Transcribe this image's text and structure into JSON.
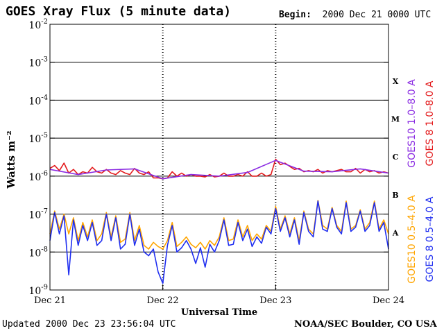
{
  "header": {
    "title": "GOES Xray Flux (5 minute data)",
    "begin_label": "Begin:",
    "begin_value": "2000 Dec 21 0000 UTC"
  },
  "footer": {
    "updated_label": "Updated",
    "updated_value": "2000 Dec 23 23:56:04 UTC",
    "credit": "NOAA/SEC Boulder, CO USA"
  },
  "chart_data": {
    "type": "line",
    "title": "GOES Xray Flux (5 minute data)",
    "xlabel": "Universal Time",
    "ylabel": "Watts m⁻²",
    "yscale": "log",
    "ylim": [
      1e-09,
      0.01
    ],
    "xlim": [
      0,
      72
    ],
    "x_unit": "hours since 2000 Dec 21 0000 UTC",
    "x_ticks": [
      {
        "value": 0,
        "label": "Dec 21"
      },
      {
        "value": 24,
        "label": "Dec 22"
      },
      {
        "value": 48,
        "label": "Dec 23"
      },
      {
        "value": 72,
        "label": "Dec 24"
      }
    ],
    "y_ticks": [
      {
        "value": 1e-09,
        "base": "10",
        "exp": "-9"
      },
      {
        "value": 1e-08,
        "base": "10",
        "exp": "-8"
      },
      {
        "value": 1e-07,
        "base": "10",
        "exp": "-7"
      },
      {
        "value": 1e-06,
        "base": "10",
        "exp": "-6"
      },
      {
        "value": 1e-05,
        "base": "10",
        "exp": "-5"
      },
      {
        "value": 0.0001,
        "base": "10",
        "exp": "-4"
      },
      {
        "value": 0.001,
        "base": "10",
        "exp": "-3"
      },
      {
        "value": 0.01,
        "base": "10",
        "exp": "-2"
      }
    ],
    "flare_classes": [
      {
        "label": "A",
        "value": 3.2e-08
      },
      {
        "label": "B",
        "value": 3.2e-07
      },
      {
        "label": "C",
        "value": 3.2e-06
      },
      {
        "label": "M",
        "value": 3.2e-05
      },
      {
        "label": "X",
        "value": 0.00032
      }
    ],
    "grid": {
      "horizontal_decades": [
        1e-08,
        1e-07,
        1e-06,
        1e-05,
        0.0001,
        0.001
      ],
      "vertical_dotted_days": [
        24,
        48
      ]
    },
    "legend": [
      {
        "label": "GOES10 1.0–8.0 A",
        "color": "#8a2be2"
      },
      {
        "label": "GOES 8 1.0–8.0 A",
        "color": "#e31a1c"
      },
      {
        "label": "GOES10 0.5–4.0 A",
        "color": "#ffa500"
      },
      {
        "label": "GOES 8 0.5–4.0 A",
        "color": "#1f2ef0"
      }
    ],
    "series": [
      {
        "name": "GOES 8 1.0–8.0 A",
        "color": "#e31a1c",
        "x": [
          0,
          1,
          2,
          3,
          4,
          5,
          6,
          7,
          8,
          9,
          10,
          11,
          12,
          13,
          14,
          15,
          16,
          17,
          18,
          19,
          20,
          21,
          22,
          23,
          24,
          25,
          26,
          27,
          28,
          29,
          30,
          31,
          32,
          33,
          34,
          35,
          36,
          37,
          38,
          39,
          40,
          41,
          42,
          43,
          44,
          45,
          46,
          47,
          48,
          49,
          50,
          51,
          52,
          53,
          54,
          55,
          56,
          57,
          58,
          59,
          60,
          61,
          62,
          63,
          64,
          65,
          66,
          67,
          68,
          69,
          70,
          71,
          72
        ],
        "values": [
          1.6e-06,
          1.9e-06,
          1.4e-06,
          2.2e-06,
          1.2e-06,
          1.5e-06,
          1.1e-06,
          1.3e-06,
          1.2e-06,
          1.7e-06,
          1.3e-06,
          1.2e-06,
          1.5e-06,
          1.2e-06,
          1.1e-06,
          1.4e-06,
          1.2e-06,
          1.1e-06,
          1.6e-06,
          1.2e-06,
          1.1e-06,
          1.3e-06,
          9e-07,
          9e-07,
          8.5e-07,
          9e-07,
          1.3e-06,
          1e-06,
          1.2e-06,
          1e-06,
          1.1e-06,
          1e-06,
          1e-06,
          9.5e-07,
          1.1e-06,
          9.5e-07,
          1e-06,
          1.2e-06,
          1e-06,
          1e-06,
          1.1e-06,
          1e-06,
          1.3e-06,
          1e-06,
          1e-06,
          1.2e-06,
          1e-06,
          1.1e-06,
          2.8e-06,
          2e-06,
          2.2e-06,
          1.8e-06,
          1.5e-06,
          1.6e-06,
          1.3e-06,
          1.4e-06,
          1.3e-06,
          1.5e-06,
          1.2e-06,
          1.4e-06,
          1.3e-06,
          1.4e-06,
          1.5e-06,
          1.3e-06,
          1.3e-06,
          1.6e-06,
          1.2e-06,
          1.5e-06,
          1.3e-06,
          1.4e-06,
          1.2e-06,
          1.3e-06,
          1.2e-06
        ]
      },
      {
        "name": "GOES10 1.0–8.0 A",
        "color": "#8a2be2",
        "x": [
          0,
          6,
          12,
          18,
          24,
          30,
          36,
          42,
          48,
          54,
          60,
          66,
          72
        ],
        "values": [
          1.5e-06,
          1.1e-06,
          1.45e-06,
          1.55e-06,
          8.5e-07,
          1.1e-06,
          1e-06,
          1.25e-06,
          2.6e-06,
          1.35e-06,
          1.3e-06,
          1.55e-06,
          1.2e-06
        ]
      },
      {
        "name": "GOES10 0.5–4.0 A",
        "color": "#ffa500",
        "x": [
          0,
          1,
          2,
          3,
          4,
          5,
          6,
          7,
          8,
          9,
          10,
          11,
          12,
          13,
          14,
          15,
          16,
          17,
          18,
          19,
          20,
          21,
          22,
          23,
          24,
          25,
          26,
          27,
          28,
          29,
          30,
          31,
          32,
          33,
          34,
          35,
          36,
          37,
          38,
          39,
          40,
          41,
          42,
          43,
          44,
          45,
          46,
          47,
          48,
          49,
          50,
          51,
          52,
          53,
          54,
          55,
          56,
          57,
          58,
          59,
          60,
          61,
          62,
          63,
          64,
          65,
          66,
          67,
          68,
          69,
          70,
          71,
          72
        ],
        "values": [
          3e-08,
          1.2e-07,
          4e-08,
          1e-07,
          3e-08,
          8e-08,
          2e-08,
          6e-08,
          2.5e-08,
          7e-08,
          2e-08,
          3e-08,
          1.1e-07,
          2.5e-08,
          9e-08,
          1.8e-08,
          2.2e-08,
          1.1e-07,
          2e-08,
          5e-08,
          1.5e-08,
          1.2e-08,
          1.8e-08,
          1.4e-08,
          1.2e-08,
          2e-08,
          6e-08,
          1.4e-08,
          1.8e-08,
          2.5e-08,
          1.6e-08,
          1.3e-08,
          1.8e-08,
          1.2e-08,
          2e-08,
          1.5e-08,
          2.5e-08,
          8e-08,
          2e-08,
          2.2e-08,
          7e-08,
          2.5e-08,
          5e-08,
          2e-08,
          3e-08,
          2.2e-08,
          5e-08,
          3.5e-08,
          1.6e-07,
          4e-08,
          9e-08,
          3e-08,
          8e-08,
          2e-08,
          1.2e-07,
          4e-08,
          3e-08,
          2.3e-07,
          5e-08,
          4e-08,
          1.5e-07,
          5e-08,
          3.5e-08,
          2.2e-07,
          4e-08,
          5e-08,
          1.3e-07,
          4e-08,
          6e-08,
          2.2e-07,
          4e-08,
          7e-08,
          3e-08
        ]
      },
      {
        "name": "GOES 8 0.5–4.0 A",
        "color": "#1f2ef0",
        "x": [
          0,
          1,
          2,
          3,
          4,
          5,
          6,
          7,
          8,
          9,
          10,
          11,
          12,
          13,
          14,
          15,
          16,
          17,
          18,
          19,
          20,
          21,
          22,
          23,
          24,
          25,
          26,
          27,
          28,
          29,
          30,
          31,
          32,
          33,
          34,
          35,
          36,
          37,
          38,
          39,
          40,
          41,
          42,
          43,
          44,
          45,
          46,
          47,
          48,
          49,
          50,
          51,
          52,
          53,
          54,
          55,
          56,
          57,
          58,
          59,
          60,
          61,
          62,
          63,
          64,
          65,
          66,
          67,
          68,
          69,
          70,
          71,
          72
        ],
        "values": [
          2e-08,
          1.1e-07,
          3e-08,
          9e-08,
          2.5e-09,
          7e-08,
          1.5e-08,
          5e-08,
          2e-08,
          6e-08,
          1.5e-08,
          2e-08,
          1e-07,
          2e-08,
          8e-08,
          1.2e-08,
          1.6e-08,
          1e-07,
          1.5e-08,
          4e-08,
          1e-08,
          8e-09,
          1.2e-08,
          3e-09,
          1.5e-09,
          1.5e-08,
          5e-08,
          1e-08,
          1.3e-08,
          2e-08,
          1.2e-08,
          5e-09,
          1.3e-08,
          4e-09,
          1.6e-08,
          1e-08,
          2e-08,
          7e-08,
          1.5e-08,
          1.6e-08,
          6e-08,
          2e-08,
          4e-08,
          1.4e-08,
          2.5e-08,
          1.7e-08,
          4.5e-08,
          3e-08,
          1.4e-07,
          3.5e-08,
          8e-08,
          2.5e-08,
          7e-08,
          1.6e-08,
          1.1e-07,
          3.5e-08,
          2.5e-08,
          2.2e-07,
          4e-08,
          3.5e-08,
          1.4e-07,
          4.5e-08,
          3e-08,
          2e-07,
          3.5e-08,
          4.5e-08,
          1.2e-07,
          3.5e-08,
          5e-08,
          2e-07,
          3.5e-08,
          6e-08,
          1.2e-08
        ]
      }
    ]
  }
}
